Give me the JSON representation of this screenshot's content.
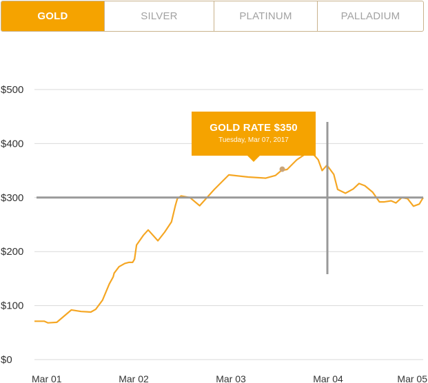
{
  "tabs": [
    {
      "label": "GOLD",
      "active": true
    },
    {
      "label": "SILVER",
      "active": false
    },
    {
      "label": "PLATINUM",
      "active": false
    },
    {
      "label": "PALLADIUM",
      "active": false
    }
  ],
  "tooltip": {
    "title": "GOLD RATE $350",
    "subtitle": "Tuesday, Mar 07, 2017"
  },
  "colors": {
    "accent": "#f5a300",
    "line": "#f5a623",
    "grid": "#d9d9d9",
    "crosshair": "#999999",
    "tab_border": "#c9b28c"
  },
  "chart_data": {
    "type": "line",
    "title": "",
    "xlabel": "",
    "ylabel": "",
    "ylim": [
      0,
      500
    ],
    "xlim": [
      0,
      4
    ],
    "y_ticks": [
      {
        "value": 0,
        "label": "$0"
      },
      {
        "value": 100,
        "label": "$100"
      },
      {
        "value": 200,
        "label": "$200"
      },
      {
        "value": 300,
        "label": "$300"
      },
      {
        "value": 400,
        "label": "$400"
      },
      {
        "value": 500,
        "label": "$500"
      }
    ],
    "x_ticks": [
      {
        "value": 0,
        "label": "Mar 01"
      },
      {
        "value": 1,
        "label": "Mar 02"
      },
      {
        "value": 2,
        "label": "Mar 03"
      },
      {
        "value": 3,
        "label": "Mar 04"
      },
      {
        "value": 4,
        "label": "Mar 05"
      }
    ],
    "grid": true,
    "highlight_value": 350,
    "highlight_x": 2.55,
    "crosshair": {
      "x": 3.0,
      "y": 300
    },
    "series": [
      {
        "x": [
          0.0,
          0.1,
          0.14,
          0.23,
          0.38,
          0.48,
          0.58,
          0.63,
          0.7,
          0.77,
          0.81,
          0.82,
          0.87,
          0.93,
          0.97,
          1.01,
          1.03,
          1.05,
          1.12,
          1.17,
          1.27,
          1.34,
          1.41,
          1.45,
          1.47,
          1.51,
          1.6,
          1.7,
          1.85,
          2.0,
          2.2,
          2.38,
          2.48,
          2.54,
          2.6,
          2.7,
          2.8,
          2.82,
          2.84,
          2.88,
          2.92,
          2.96,
          3.01,
          3.08,
          3.12,
          3.2,
          3.28,
          3.34,
          3.4,
          3.48,
          3.55,
          3.6,
          3.67,
          3.72,
          3.78,
          3.84,
          3.9,
          3.96,
          4.0
        ],
        "y": [
          71,
          71,
          68,
          69,
          92,
          89,
          88,
          93,
          110,
          140,
          153,
          160,
          172,
          178,
          180,
          180,
          186,
          212,
          230,
          240,
          220,
          236,
          255,
          285,
          298,
          303,
          300,
          285,
          315,
          342,
          338,
          336,
          341,
          350,
          352,
          370,
          382,
          384,
          383,
          378,
          370,
          350,
          360,
          343,
          315,
          308,
          316,
          326,
          322,
          310,
          292,
          292,
          294,
          290,
          300,
          298,
          284,
          288,
          300
        ]
      }
    ]
  }
}
